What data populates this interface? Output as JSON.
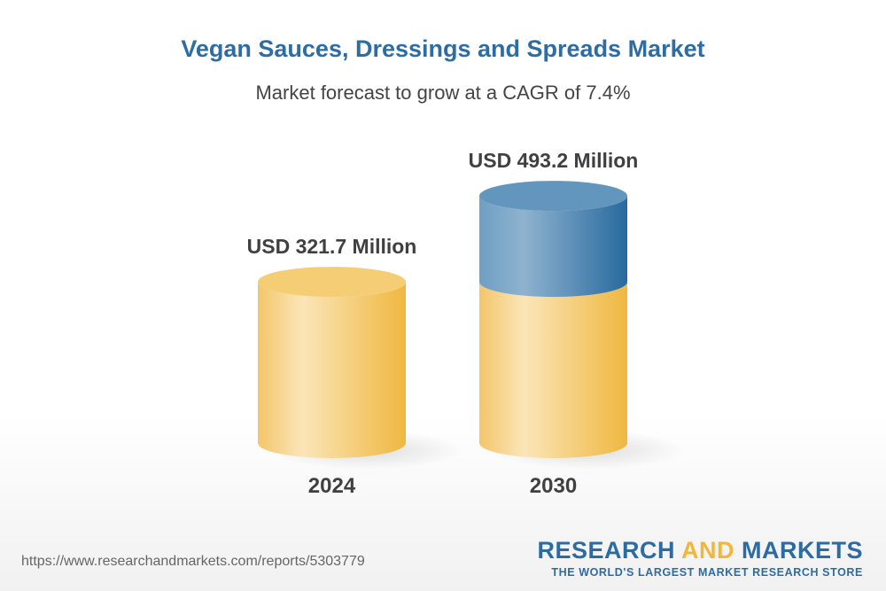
{
  "title": "Vegan Sauces, Dressings and Spreads Market",
  "subtitle": "Market forecast to grow at a CAGR of 7.4%",
  "chart_data": {
    "type": "bar",
    "style": "3d-cylinder",
    "categories": [
      "2024",
      "2030"
    ],
    "values": [
      321.7,
      493.2
    ],
    "labels": [
      "USD 321.7 Million",
      "USD 493.2 Million"
    ],
    "ylim": [
      0,
      580
    ],
    "grid": false,
    "colors": {
      "base": "#f3c257",
      "growth": "#2d6ca2"
    }
  },
  "footer": {
    "url": "https://www.researchandmarkets.com/reports/5303779",
    "logo_part1": "RESEARCH ",
    "logo_part2": "AND",
    "logo_part3": " MARKETS",
    "tagline": "THE WORLD'S LARGEST MARKET RESEARCH STORE"
  }
}
